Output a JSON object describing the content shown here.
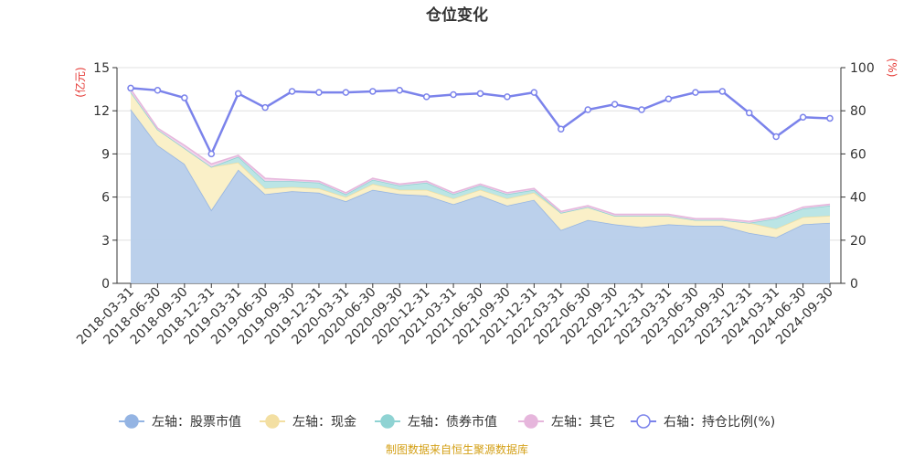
{
  "chart_data": {
    "type": "area",
    "title": "仓位变化",
    "left_unit": "(亿元)",
    "right_unit": "(%)",
    "left_axis": {
      "min": 0,
      "max": 15,
      "ticks": [
        0,
        3,
        6,
        9,
        12,
        15
      ]
    },
    "right_axis": {
      "min": 0,
      "max": 100,
      "ticks": [
        0,
        20,
        40,
        60,
        80,
        100
      ]
    },
    "categories": [
      "2018-03-31",
      "2018-06-30",
      "2018-09-30",
      "2018-12-31",
      "2019-03-31",
      "2019-06-30",
      "2019-09-30",
      "2019-12-31",
      "2020-03-31",
      "2020-06-30",
      "2020-09-30",
      "2020-12-31",
      "2021-03-31",
      "2021-06-30",
      "2021-09-30",
      "2021-12-31",
      "2022-03-31",
      "2022-06-30",
      "2022-09-30",
      "2022-12-31",
      "2023-03-31",
      "2023-06-30",
      "2023-09-30",
      "2023-12-31",
      "2024-03-31",
      "2024-06-30",
      "2024-09-30"
    ],
    "stacked_series": [
      {
        "name": "左轴：股票市值",
        "color": "#94b4e3",
        "fill": "#b7cdea",
        "values": [
          12.1,
          9.6,
          8.3,
          5.1,
          7.9,
          6.2,
          6.4,
          6.3,
          5.7,
          6.5,
          6.2,
          6.1,
          5.5,
          6.1,
          5.4,
          5.8,
          3.7,
          4.4,
          4.1,
          3.9,
          4.1,
          4.0,
          4.0,
          3.5,
          3.2,
          4.1,
          4.2
        ]
      },
      {
        "name": "左轴：现金",
        "color": "#f3dfa2",
        "fill": "#faefc5",
        "values": [
          1.2,
          1.1,
          1.1,
          3.0,
          0.5,
          0.4,
          0.3,
          0.3,
          0.3,
          0.4,
          0.3,
          0.4,
          0.4,
          0.4,
          0.5,
          0.5,
          1.2,
          0.9,
          0.6,
          0.8,
          0.6,
          0.4,
          0.4,
          0.7,
          0.6,
          0.5,
          0.5
        ]
      },
      {
        "name": "左轴：债券市值",
        "color": "#8fd3d3",
        "fill": "#b7e4e4",
        "values": [
          0,
          0,
          0,
          0,
          0.4,
          0.5,
          0.4,
          0.4,
          0.2,
          0.3,
          0.3,
          0.5,
          0.3,
          0.3,
          0.3,
          0.2,
          0,
          0,
          0,
          0,
          0,
          0,
          0,
          0,
          0.7,
          0.6,
          0.7
        ]
      },
      {
        "name": "左轴：其它",
        "color": "#e6b6dc",
        "fill": "#f1d3eb",
        "values": [
          0.2,
          0.1,
          0.2,
          0.2,
          0.1,
          0.2,
          0.1,
          0.1,
          0.1,
          0.1,
          0.1,
          0.1,
          0.1,
          0.1,
          0.1,
          0.1,
          0.1,
          0.1,
          0.1,
          0.1,
          0.1,
          0.1,
          0.1,
          0.1,
          0.1,
          0.1,
          0.1
        ]
      }
    ],
    "line_series": {
      "name": "右轴：持仓比例(%)",
      "color": "#7b83eb",
      "values": [
        90.5,
        89.5,
        86.0,
        60.0,
        88.0,
        81.5,
        89.0,
        88.5,
        88.5,
        89.0,
        89.5,
        86.5,
        87.5,
        88.0,
        86.5,
        88.5,
        71.5,
        80.5,
        83.0,
        80.5,
        85.5,
        88.5,
        89.0,
        79.0,
        68.0,
        77.0,
        76.5
      ]
    },
    "legend_position": "bottom",
    "grid": true
  },
  "source_note": "制图数据来自恒生聚源数据库"
}
